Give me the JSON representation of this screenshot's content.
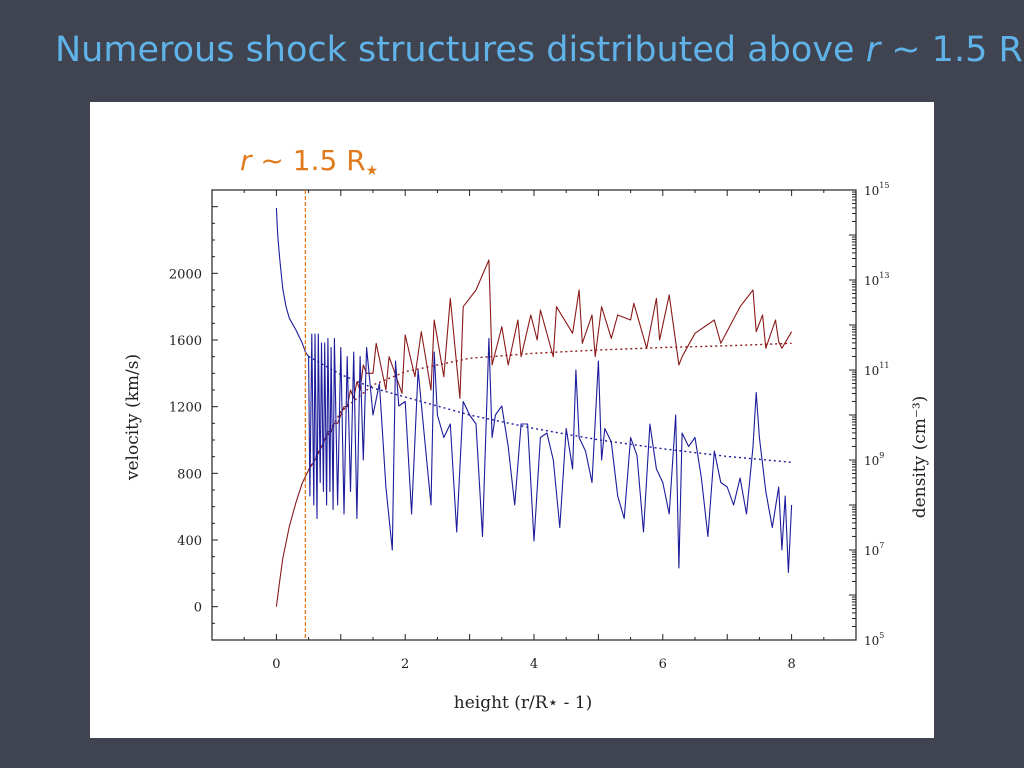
{
  "slide": {
    "title_prefix": "Numerous shock structures distributed above ",
    "title_var": "r",
    "title_suffix": " ~ 1.5 R",
    "title_star": "★"
  },
  "colors": {
    "background": "#3f4450",
    "title": "#5fb3e8",
    "velocity": "#8b1a1a",
    "density": "#1c1c9c",
    "marker": "#e07a1c"
  },
  "chart_data": {
    "type": "line",
    "xlabel": "height (r/R⋆ - 1)",
    "ylabel": "velocity (km/s)",
    "y2label": "density (cm⁻³)",
    "xlim": [
      -1,
      9
    ],
    "ylim": [
      -200,
      2500
    ],
    "y2lim_log10": [
      5,
      15
    ],
    "y2scale": "log",
    "xticks": [
      0,
      2,
      4,
      6,
      8
    ],
    "yticks": [
      0,
      400,
      800,
      1200,
      1600,
      2000
    ],
    "y2ticks": [
      5,
      7,
      9,
      11,
      13,
      15
    ],
    "marker": {
      "x": 0.45,
      "var": "r",
      "label": " ~ 1.5 R",
      "star": "★"
    },
    "series": [
      {
        "color": "velocity",
        "axis": "left",
        "x": [
          0,
          0.05,
          0.1,
          0.2,
          0.3,
          0.4,
          0.5,
          0.6,
          0.65,
          0.7,
          0.75,
          0.8,
          0.85,
          0.9,
          0.95,
          1.0,
          1.05,
          1.1,
          1.15,
          1.2,
          1.25,
          1.3,
          1.35,
          1.4,
          1.5,
          1.55,
          1.7,
          1.75,
          1.95,
          2.0,
          2.15,
          2.25,
          2.4,
          2.45,
          2.6,
          2.7,
          2.85,
          2.9,
          3.1,
          3.3,
          3.35,
          3.5,
          3.6,
          3.75,
          3.8,
          3.95,
          4.05,
          4.1,
          4.3,
          4.35,
          4.6,
          4.7,
          4.75,
          4.9,
          4.95,
          5.05,
          5.2,
          5.3,
          5.5,
          5.55,
          5.75,
          5.9,
          5.95,
          6.1,
          6.25,
          6.3,
          6.5,
          6.8,
          6.9,
          7.2,
          7.4,
          7.45,
          7.55,
          7.6,
          7.75,
          7.8,
          7.85,
          8.0
        ],
        "values": [
          0,
          150,
          290,
          480,
          620,
          740,
          820,
          880,
          920,
          960,
          1000,
          1050,
          1050,
          1100,
          1100,
          1150,
          1200,
          1200,
          1300,
          1250,
          1350,
          1300,
          1450,
          1400,
          1400,
          1580,
          1300,
          1500,
          1280,
          1630,
          1380,
          1650,
          1300,
          1720,
          1380,
          1850,
          1250,
          1800,
          1900,
          2080,
          1450,
          1680,
          1450,
          1720,
          1500,
          1750,
          1600,
          1780,
          1500,
          1800,
          1640,
          1900,
          1580,
          1750,
          1500,
          1800,
          1610,
          1750,
          1720,
          1820,
          1550,
          1850,
          1600,
          1870,
          1450,
          1500,
          1640,
          1720,
          1580,
          1800,
          1900,
          1650,
          1750,
          1550,
          1720,
          1590,
          1550,
          1650
        ]
      },
      {
        "color": "velocity",
        "axis": "left",
        "style": "dotted",
        "x": [
          0.5,
          1,
          1.5,
          2,
          3,
          4,
          5,
          6,
          7,
          8
        ],
        "values": [
          820,
          1170,
          1330,
          1410,
          1490,
          1520,
          1540,
          1555,
          1565,
          1580
        ]
      },
      {
        "color": "density",
        "axis": "right",
        "x": [
          0,
          0.02,
          0.05,
          0.1,
          0.15,
          0.2,
          0.3,
          0.4,
          0.45,
          0.5,
          0.52,
          0.55,
          0.58,
          0.6,
          0.63,
          0.65,
          0.68,
          0.7,
          0.73,
          0.75,
          0.78,
          0.8,
          0.83,
          0.85,
          0.88,
          0.9,
          0.95,
          1.0,
          1.05,
          1.1,
          1.15,
          1.2,
          1.25,
          1.3,
          1.35,
          1.4,
          1.5,
          1.6,
          1.7,
          1.8,
          1.85,
          1.9,
          2.0,
          2.1,
          2.2,
          2.3,
          2.4,
          2.45,
          2.5,
          2.6,
          2.7,
          2.8,
          2.9,
          3.0,
          3.1,
          3.2,
          3.3,
          3.35,
          3.4,
          3.5,
          3.6,
          3.7,
          3.8,
          3.9,
          4.0,
          4.1,
          4.2,
          4.3,
          4.4,
          4.5,
          4.6,
          4.65,
          4.7,
          4.8,
          4.9,
          5.0,
          5.05,
          5.1,
          5.2,
          5.3,
          5.4,
          5.5,
          5.6,
          5.7,
          5.8,
          5.9,
          6.0,
          6.1,
          6.2,
          6.25,
          6.3,
          6.4,
          6.5,
          6.6,
          6.7,
          6.8,
          6.9,
          7.0,
          7.1,
          7.2,
          7.3,
          7.4,
          7.45,
          7.5,
          7.6,
          7.7,
          7.8,
          7.85,
          7.9,
          7.95,
          8.0
        ],
        "values": [
          14.6,
          14.0,
          13.5,
          12.8,
          12.4,
          12.15,
          11.9,
          11.6,
          11.4,
          11.3,
          8.2,
          11.8,
          8.0,
          11.8,
          7.7,
          11.8,
          8.5,
          11.6,
          8.3,
          11.6,
          8.0,
          11.7,
          8.3,
          11.5,
          7.9,
          11.7,
          8.0,
          11.5,
          7.8,
          11.3,
          8.3,
          11.4,
          7.7,
          11.3,
          9.0,
          11.5,
          10.0,
          10.7,
          8.4,
          7.0,
          11.2,
          10.2,
          10.3,
          7.8,
          11.0,
          9.5,
          8.0,
          11.4,
          10.0,
          9.5,
          9.8,
          7.4,
          10.3,
          10.0,
          9.8,
          7.3,
          11.7,
          9.5,
          10.0,
          10.2,
          9.3,
          8.0,
          9.8,
          9.8,
          7.2,
          9.5,
          9.6,
          9.0,
          7.5,
          9.7,
          8.8,
          11.0,
          9.5,
          9.2,
          8.5,
          11.2,
          9.0,
          9.7,
          9.4,
          8.2,
          7.7,
          9.5,
          9.1,
          7.4,
          9.8,
          8.8,
          8.5,
          7.8,
          10.0,
          6.6,
          9.6,
          9.3,
          9.5,
          8.6,
          7.3,
          9.2,
          8.5,
          8.4,
          8.0,
          8.6,
          7.8,
          9.3,
          10.5,
          9.5,
          8.3,
          7.5,
          8.4,
          7.0,
          8.2,
          6.5,
          8.0
        ]
      },
      {
        "color": "density",
        "axis": "right",
        "style": "dotted",
        "x": [
          0.5,
          1,
          1.5,
          2,
          3,
          4,
          5,
          6,
          7,
          8
        ],
        "values": [
          11.3,
          10.9,
          10.6,
          10.4,
          10.0,
          9.7,
          9.45,
          9.25,
          9.08,
          8.95
        ]
      }
    ]
  }
}
